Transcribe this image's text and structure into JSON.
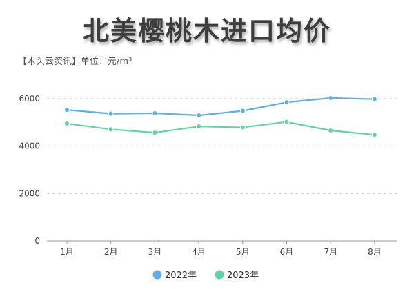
{
  "chart_data": {
    "type": "line",
    "title": "北美樱桃木进口均价",
    "subtitle": "【木头云资讯】单位：元/m³",
    "categories": [
      "1月",
      "2月",
      "3月",
      "4月",
      "5月",
      "6月",
      "7月",
      "8月"
    ],
    "series": [
      {
        "name": "2022年",
        "color": "#5aaeea",
        "values": [
          5530,
          5370,
          5390,
          5300,
          5490,
          5850,
          6030,
          5980
        ]
      },
      {
        "name": "2023年",
        "color": "#5dd6a4",
        "values": [
          4950,
          4710,
          4570,
          4830,
          4790,
          5020,
          4660,
          4480
        ]
      }
    ],
    "ylim": [
      0,
      6000
    ],
    "yticks": [
      0,
      2000,
      4000,
      6000
    ],
    "grid": true,
    "legend_position": "bottom-center"
  }
}
